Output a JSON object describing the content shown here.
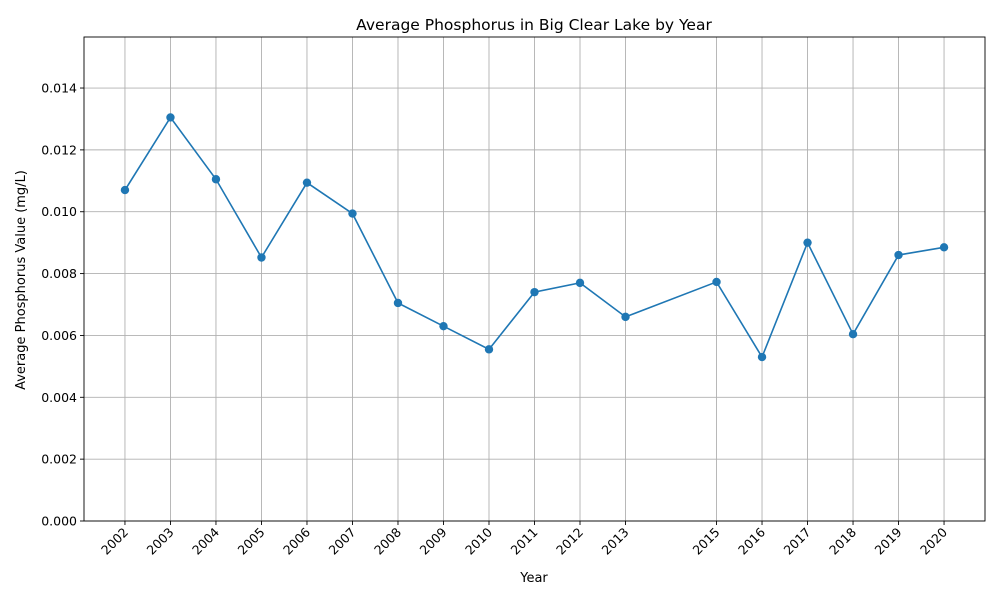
{
  "chart_data": {
    "type": "line",
    "title": "Average Phosphorus in Big Clear Lake by Year",
    "xlabel": "Year",
    "ylabel": "Average Phosphorus Value (mg/L)",
    "x": [
      2002,
      2003,
      2004,
      2005,
      2006,
      2007,
      2008,
      2009,
      2010,
      2011,
      2012,
      2013,
      2015,
      2016,
      2017,
      2018,
      2019,
      2020
    ],
    "series": [
      {
        "values": [
          0.0107,
          0.01305,
          0.01105,
          0.00852,
          0.01094,
          0.00994,
          0.00705,
          0.0063,
          0.00555,
          0.0074,
          0.0077,
          0.0066,
          0.00773,
          0.0053,
          0.009,
          0.00604,
          0.0086,
          0.00885
        ],
        "color": "#1f77b4"
      }
    ],
    "xlim": [
      2001.1,
      2020.9
    ],
    "ylim": [
      0,
      0.01565
    ],
    "yticks": [
      "0.000",
      "0.002",
      "0.004",
      "0.006",
      "0.008",
      "0.010",
      "0.012",
      "0.014"
    ],
    "ytick_values": [
      0,
      0.002,
      0.004,
      0.006,
      0.008,
      0.01,
      0.012,
      0.014
    ],
    "xticks": [
      "2002",
      "2003",
      "2004",
      "2005",
      "2006",
      "2007",
      "2008",
      "2009",
      "2010",
      "2011",
      "2012",
      "2013",
      "2015",
      "2016",
      "2017",
      "2018",
      "2019",
      "2020"
    ],
    "grid": true
  }
}
